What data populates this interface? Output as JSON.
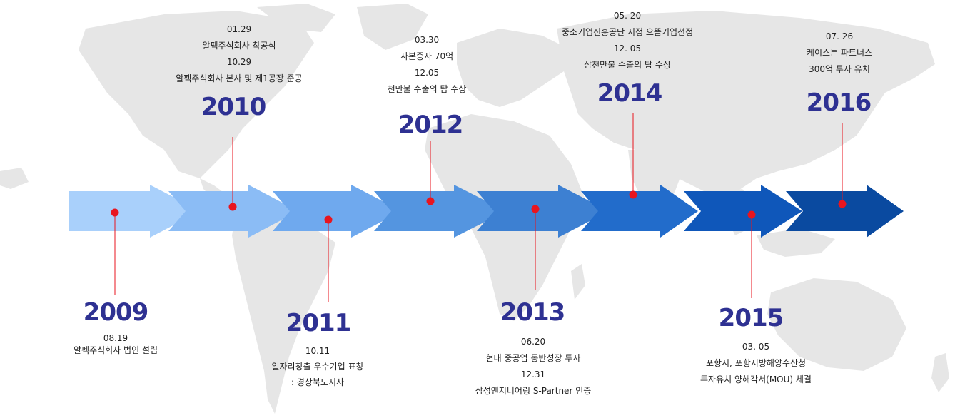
{
  "colors": {
    "year_text": "#2e3192",
    "dot": "#e8151f",
    "line": "#e8151f",
    "map": "#e6e6e6",
    "arrows": [
      "#a9d0fb",
      "#8bbcf5",
      "#6fa9ee",
      "#5495e0",
      "#3d80d2",
      "#226ccb",
      "#0f57ba",
      "#0a4aa0"
    ]
  },
  "timeline": [
    {
      "year": "2009",
      "events": [
        "08.19",
        "알펙주식회사 법인 설립"
      ]
    },
    {
      "year": "2010",
      "events": [
        "01.29",
        "알펙주식회사 착공식",
        "10.29",
        "알펙주식회사 본사 및 제1공장 준공"
      ]
    },
    {
      "year": "2011",
      "events": [
        "10.11",
        "일자리창출 우수기업 표창",
        ": 경상북도지사"
      ]
    },
    {
      "year": "2012",
      "events": [
        "03.30",
        "자본증자 70억",
        "12.05",
        "천만불 수출의 탑 수상"
      ]
    },
    {
      "year": "2013",
      "events": [
        "06.20",
        "현대 중공업 동반성장 투자",
        "12.31",
        "삼성엔지니어링 S-Partner 인증"
      ]
    },
    {
      "year": "2014",
      "events": [
        "05. 20",
        "중소기업진흥공단 지정 으뜸기업선정",
        "12. 05",
        "삼천만불 수출의 탑 수상"
      ]
    },
    {
      "year": "2015",
      "events": [
        "03. 05",
        "포항시, 포항지방해양수산청",
        "투자유치 양해각서(MOU) 체결"
      ]
    },
    {
      "year": "2016",
      "events": [
        "07. 26",
        "케이스톤 파트너스",
        "300억 투자 유치"
      ]
    }
  ]
}
